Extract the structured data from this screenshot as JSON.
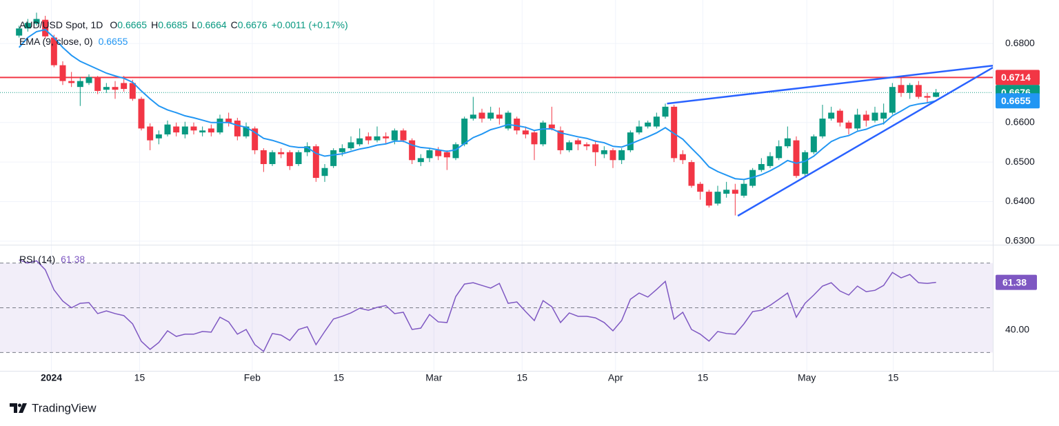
{
  "chart_data": [
    {
      "type": "candlestick",
      "title": "AUD/USD Spot, 1D",
      "ohlc_items": [
        {
          "key": "O",
          "value": "0.6665"
        },
        {
          "key": "H",
          "value": "0.6685"
        },
        {
          "key": "L",
          "value": "0.6664"
        },
        {
          "key": "C",
          "value": "0.6676"
        }
      ],
      "change": "+0.0011 (+0.17%)",
      "colors": {
        "up": "#089981",
        "down": "#f23645"
      },
      "open": [
        0.682,
        0.6838,
        0.685,
        0.686,
        0.6815,
        0.6745,
        0.6705,
        0.669,
        0.67,
        0.6715,
        0.6683,
        0.669,
        0.67,
        0.67,
        0.666,
        0.659,
        0.656,
        0.657,
        0.659,
        0.657,
        0.659,
        0.6575,
        0.6585,
        0.6575,
        0.661,
        0.6605,
        0.6565,
        0.6585,
        0.653,
        0.6495,
        0.6525,
        0.6525,
        0.6495,
        0.6525,
        0.654,
        0.6465,
        0.649,
        0.6525,
        0.6535,
        0.6545,
        0.6565,
        0.6555,
        0.6565,
        0.6555,
        0.658,
        0.6555,
        0.65,
        0.651,
        0.653,
        0.6525,
        0.651,
        0.6545,
        0.661,
        0.6625,
        0.661,
        0.662,
        0.6585,
        0.661,
        0.658,
        0.6575,
        0.6545,
        0.6595,
        0.658,
        0.653,
        0.6555,
        0.6545,
        0.6545,
        0.652,
        0.653,
        0.6505,
        0.653,
        0.6575,
        0.659,
        0.659,
        0.6615,
        0.664,
        0.652,
        0.65,
        0.6445,
        0.6425,
        0.6395,
        0.642,
        0.643,
        0.6415,
        0.644,
        0.648,
        0.649,
        0.651,
        0.654,
        0.6555,
        0.647,
        0.6525,
        0.6565,
        0.661,
        0.663,
        0.66,
        0.6585,
        0.662,
        0.6605,
        0.661,
        0.6625,
        0.6695,
        0.6675,
        0.6695,
        0.6667,
        0.6665
      ],
      "high": [
        0.6845,
        0.6862,
        0.6878,
        0.687,
        0.6822,
        0.6755,
        0.6728,
        0.6715,
        0.6722,
        0.6718,
        0.67,
        0.6705,
        0.6718,
        0.6708,
        0.6665,
        0.6598,
        0.658,
        0.6605,
        0.66,
        0.6602,
        0.66,
        0.659,
        0.6595,
        0.662,
        0.6625,
        0.6612,
        0.66,
        0.659,
        0.6535,
        0.653,
        0.6535,
        0.653,
        0.653,
        0.655,
        0.6545,
        0.6495,
        0.6535,
        0.6545,
        0.6565,
        0.6585,
        0.6575,
        0.659,
        0.6575,
        0.6585,
        0.6585,
        0.656,
        0.652,
        0.6535,
        0.6538,
        0.653,
        0.655,
        0.6615,
        0.6665,
        0.6635,
        0.664,
        0.6638,
        0.663,
        0.6615,
        0.659,
        0.658,
        0.6605,
        0.664,
        0.659,
        0.6555,
        0.656,
        0.655,
        0.6555,
        0.654,
        0.6535,
        0.6535,
        0.658,
        0.6605,
        0.6605,
        0.6625,
        0.6648,
        0.6645,
        0.653,
        0.6505,
        0.645,
        0.643,
        0.644,
        0.645,
        0.6445,
        0.6455,
        0.6485,
        0.651,
        0.6525,
        0.6555,
        0.659,
        0.6565,
        0.653,
        0.657,
        0.6645,
        0.664,
        0.6635,
        0.6605,
        0.6635,
        0.663,
        0.664,
        0.6648,
        0.67,
        0.6714,
        0.67,
        0.6705,
        0.6675,
        0.6685
      ],
      "low": [
        0.6815,
        0.683,
        0.6845,
        0.6812,
        0.674,
        0.6695,
        0.669,
        0.6642,
        0.6695,
        0.6672,
        0.6675,
        0.666,
        0.6678,
        0.6655,
        0.658,
        0.653,
        0.6545,
        0.6565,
        0.6565,
        0.656,
        0.657,
        0.6565,
        0.6565,
        0.657,
        0.659,
        0.6555,
        0.656,
        0.652,
        0.6475,
        0.649,
        0.651,
        0.648,
        0.649,
        0.6515,
        0.645,
        0.645,
        0.6485,
        0.6515,
        0.653,
        0.654,
        0.6545,
        0.655,
        0.6545,
        0.6545,
        0.655,
        0.6495,
        0.649,
        0.65,
        0.6505,
        0.648,
        0.6505,
        0.654,
        0.6605,
        0.66,
        0.6605,
        0.6595,
        0.658,
        0.657,
        0.656,
        0.6505,
        0.654,
        0.658,
        0.652,
        0.6525,
        0.653,
        0.653,
        0.649,
        0.651,
        0.6485,
        0.6495,
        0.6525,
        0.657,
        0.6585,
        0.6585,
        0.661,
        0.65,
        0.6495,
        0.6435,
        0.6405,
        0.6385,
        0.639,
        0.641,
        0.6365,
        0.641,
        0.6435,
        0.6475,
        0.6485,
        0.6505,
        0.6535,
        0.646,
        0.6465,
        0.652,
        0.656,
        0.6605,
        0.659,
        0.657,
        0.658,
        0.659,
        0.66,
        0.6595,
        0.662,
        0.6665,
        0.666,
        0.666,
        0.665,
        0.6664
      ],
      "close": [
        0.6838,
        0.6852,
        0.6862,
        0.6818,
        0.6745,
        0.6705,
        0.67,
        0.6705,
        0.6715,
        0.668,
        0.669,
        0.6683,
        0.6685,
        0.666,
        0.6585,
        0.6555,
        0.657,
        0.6595,
        0.6575,
        0.659,
        0.658,
        0.658,
        0.6575,
        0.661,
        0.66,
        0.6565,
        0.659,
        0.653,
        0.6495,
        0.6525,
        0.652,
        0.649,
        0.6525,
        0.654,
        0.646,
        0.6485,
        0.653,
        0.6535,
        0.655,
        0.656,
        0.6555,
        0.6565,
        0.656,
        0.658,
        0.6555,
        0.6505,
        0.651,
        0.653,
        0.6515,
        0.6512,
        0.6545,
        0.661,
        0.662,
        0.661,
        0.6625,
        0.661,
        0.6625,
        0.658,
        0.657,
        0.6545,
        0.66,
        0.6585,
        0.653,
        0.655,
        0.6545,
        0.654,
        0.6525,
        0.653,
        0.6505,
        0.653,
        0.6575,
        0.659,
        0.66,
        0.6615,
        0.664,
        0.651,
        0.6505,
        0.644,
        0.6425,
        0.639,
        0.6425,
        0.643,
        0.642,
        0.6445,
        0.648,
        0.6495,
        0.6515,
        0.654,
        0.656,
        0.6465,
        0.6525,
        0.6565,
        0.661,
        0.6625,
        0.66,
        0.6585,
        0.662,
        0.6605,
        0.6625,
        0.6625,
        0.669,
        0.6675,
        0.6695,
        0.6665,
        0.6663,
        0.6676
      ],
      "series": [
        {
          "name": "EMA (9, close, 0)",
          "color": "#2196f3",
          "values": [
            0.679,
            0.6815,
            0.683,
            0.6835,
            0.6815,
            0.679,
            0.677,
            0.6755,
            0.6745,
            0.6735,
            0.6725,
            0.6718,
            0.6712,
            0.6702,
            0.668,
            0.666,
            0.6642,
            0.6632,
            0.6625,
            0.6617,
            0.6612,
            0.6606,
            0.66,
            0.66,
            0.66,
            0.6593,
            0.6588,
            0.6575,
            0.656,
            0.6555,
            0.6548,
            0.654,
            0.6537,
            0.6537,
            0.6522,
            0.6515,
            0.6518,
            0.6521,
            0.6527,
            0.6533,
            0.6537,
            0.6543,
            0.6546,
            0.6553,
            0.6553,
            0.6543,
            0.6537,
            0.6535,
            0.6531,
            0.6527,
            0.6531,
            0.6547,
            0.6562,
            0.6571,
            0.6582,
            0.6588,
            0.6595,
            0.6592,
            0.6588,
            0.658,
            0.6584,
            0.6584,
            0.6574,
            0.6569,
            0.6564,
            0.656,
            0.6553,
            0.6549,
            0.654,
            0.6538,
            0.6546,
            0.6555,
            0.6564,
            0.6574,
            0.6587,
            0.6572,
            0.6558,
            0.6535,
            0.6513,
            0.6488,
            0.6476,
            0.6467,
            0.6458,
            0.6456,
            0.6461,
            0.6468,
            0.6478,
            0.649,
            0.6504,
            0.6497,
            0.6502,
            0.6515,
            0.6534,
            0.6552,
            0.6562,
            0.6567,
            0.6578,
            0.6583,
            0.6592,
            0.6598,
            0.6617,
            0.6629,
            0.6642,
            0.6647,
            0.665,
            0.6655
          ]
        }
      ],
      "price_tags": [
        {
          "value": 0.6714,
          "color": "#f23645"
        },
        {
          "value": 0.6676,
          "color": "#089981"
        },
        {
          "value": 0.6655,
          "color": "#2196f3"
        }
      ],
      "trendlines": [
        {
          "x": [
            74.2,
            111.5
          ],
          "y": [
            0.6648,
            0.6744
          ],
          "color": "#2962ff"
        },
        {
          "x": [
            82.3,
            111.5
          ],
          "y": [
            0.6364,
            0.6739
          ],
          "color": "#2962ff"
        }
      ],
      "xlim": [
        -1,
        111.5
      ],
      "xticks": [
        {
          "value": 3.7,
          "label": "2024"
        },
        {
          "value": 13.8,
          "label": "15"
        },
        {
          "value": 26.7,
          "label": "Feb"
        },
        {
          "value": 36.6,
          "label": "15"
        },
        {
          "value": 47.5,
          "label": "Mar"
        },
        {
          "value": 57.6,
          "label": "15"
        },
        {
          "value": 68.3,
          "label": "Apr"
        },
        {
          "value": 78.3,
          "label": "15"
        },
        {
          "value": 90.2,
          "label": "May"
        },
        {
          "value": 100.1,
          "label": "15"
        }
      ],
      "ylim": [
        0.6291,
        0.691
      ],
      "yticks": [
        {
          "value": 0.63,
          "label": "0.6300"
        },
        {
          "value": 0.64,
          "label": "0.6400"
        },
        {
          "value": 0.65,
          "label": "0.6500"
        },
        {
          "value": 0.66,
          "label": "0.6600"
        },
        {
          "value": 0.68,
          "label": "0.6800"
        }
      ],
      "grid": true
    },
    {
      "type": "line",
      "series": [
        {
          "name": "RSI (14)",
          "color": "#7e57c2",
          "values": [
            71.4,
            70,
            71,
            67,
            58,
            53,
            50,
            52,
            52.3,
            47.4,
            48.6,
            47.4,
            46.5,
            42.8,
            35,
            31.4,
            34.5,
            39.7,
            37.2,
            38.2,
            38.2,
            39.4,
            39.1,
            45.8,
            43.7,
            38.2,
            40.3,
            33.5,
            30.5,
            38.5,
            37.8,
            35.4,
            40.3,
            41.5,
            33.5,
            39.4,
            45,
            46.2,
            47.7,
            49.8,
            48.9,
            50.2,
            51,
            47.4,
            48,
            40.3,
            40.9,
            47,
            43.7,
            43.4,
            55,
            60.6,
            61.2,
            60,
            58.8,
            60.9,
            52,
            52.6,
            48.3,
            44.3,
            53.2,
            50.5,
            43.4,
            47.7,
            46.2,
            46.2,
            45.5,
            43.4,
            39.7,
            44.3,
            53.8,
            56.6,
            54.8,
            58.2,
            61.8,
            44.9,
            48,
            40.3,
            38.2,
            35.1,
            39.4,
            38.5,
            38.2,
            42.8,
            48.3,
            48.9,
            51.1,
            53.8,
            56.6,
            45.8,
            52,
            55.7,
            59.7,
            61.2,
            57.5,
            55.7,
            59.7,
            57.2,
            57.8,
            60,
            65.8,
            63.4,
            64.9,
            61.2,
            60.9,
            61.38
          ]
        }
      ],
      "band": [
        30,
        70
      ],
      "levels": [
        70,
        50,
        30
      ],
      "xlim": [
        -1,
        111.5
      ],
      "ylim": [
        21.8,
        78.2
      ],
      "yticks": [
        {
          "value": 40,
          "label": "40.00"
        }
      ],
      "grid": true
    }
  ],
  "footer": {
    "brand": "TradingView"
  }
}
